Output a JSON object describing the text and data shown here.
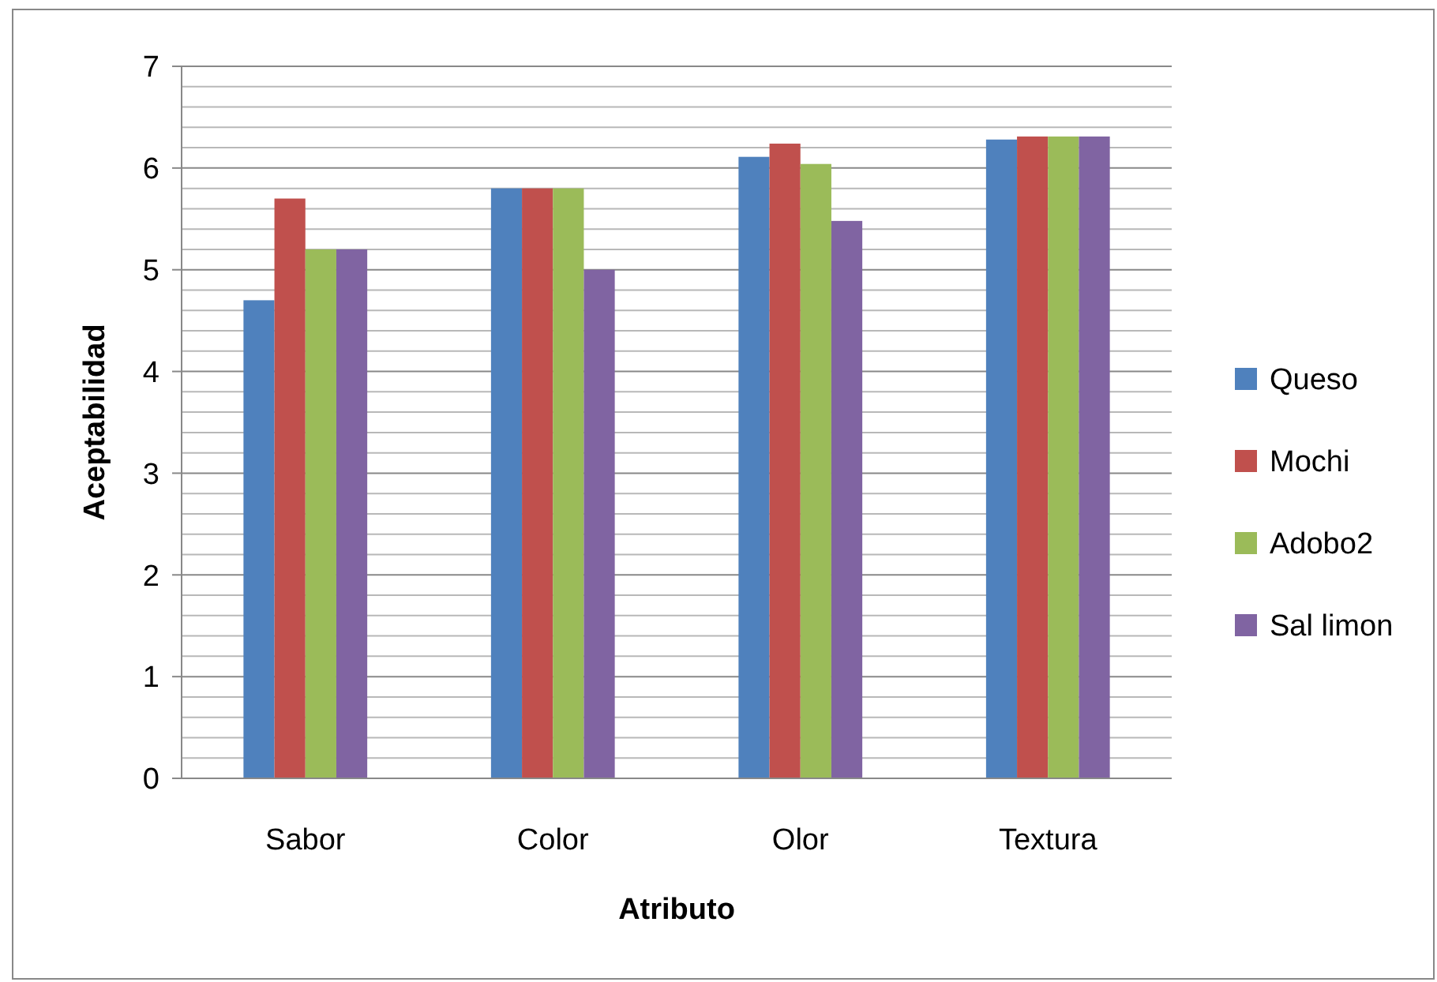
{
  "chart_data": {
    "type": "bar",
    "xlabel": "Atributo",
    "ylabel": "Aceptabilidad",
    "categories": [
      "Sabor",
      "Color",
      "Olor",
      "Textura"
    ],
    "series": [
      {
        "name": "Queso",
        "color": "#4f81bd",
        "values": [
          4.7,
          5.8,
          6.11,
          6.28
        ]
      },
      {
        "name": "Mochi",
        "color": "#c0504d",
        "values": [
          5.7,
          5.8,
          6.24,
          6.31
        ]
      },
      {
        "name": "Adobo2",
        "color": "#9bbb59",
        "values": [
          5.2,
          5.8,
          6.04,
          6.31
        ]
      },
      {
        "name": "Sal limon",
        "color": "#8064a2",
        "values": [
          5.2,
          5.0,
          5.48,
          6.31
        ]
      }
    ],
    "ylim": [
      0,
      7
    ],
    "yticks": [
      0,
      {
        "value": 0.2,
        "label": null
      },
      {
        "value": 0.4,
        "label": null
      },
      {
        "value": 0.6,
        "label": null
      },
      {
        "value": 0.8,
        "label": null
      },
      1,
      {
        "value": 1.2,
        "label": null
      },
      {
        "value": 1.4,
        "label": null
      },
      {
        "value": 1.6,
        "label": null
      },
      {
        "value": 1.8,
        "label": null
      },
      2,
      {
        "value": 2.2,
        "label": null
      },
      {
        "value": 2.4,
        "label": null
      },
      {
        "value": 2.6,
        "label": null
      },
      {
        "value": 2.8,
        "label": null
      },
      3,
      {
        "value": 3.2,
        "label": null
      },
      {
        "value": 3.4,
        "label": null
      },
      {
        "value": 3.6,
        "label": null
      },
      {
        "value": 3.8,
        "label": null
      },
      4,
      {
        "value": 4.2,
        "label": null
      },
      {
        "value": 4.4,
        "label": null
      },
      {
        "value": 4.6,
        "label": null
      },
      {
        "value": 4.8,
        "label": null
      },
      5,
      {
        "value": 5.2,
        "label": null
      },
      {
        "value": 5.4,
        "label": null
      },
      {
        "value": 5.6,
        "label": null
      },
      {
        "value": 5.8,
        "label": null
      },
      6,
      {
        "value": 6.2,
        "label": null
      },
      {
        "value": 6.4,
        "label": null
      },
      {
        "value": 6.6,
        "label": null
      },
      {
        "value": 6.8,
        "label": null
      },
      7
    ],
    "grid": "y",
    "legend": "right"
  }
}
